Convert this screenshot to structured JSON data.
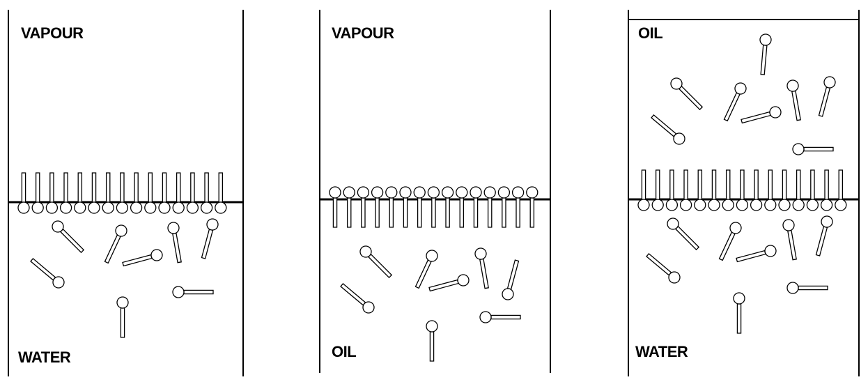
{
  "panels": [
    {
      "top_label": "VAPOUR",
      "bottom_label": "WATER",
      "interface": "water-vapour",
      "monolayer_orientation": "heads-down-tails-up",
      "molecules_in_bulk": 9
    },
    {
      "top_label": "VAPOUR",
      "bottom_label": "OIL",
      "interface": "oil-vapour",
      "monolayer_orientation": "heads-up-tails-down",
      "molecules_in_bulk": 9
    },
    {
      "top_label": "OIL",
      "bottom_label": "WATER",
      "interface": "water-oil",
      "monolayer_orientation": "heads-down-tails-up",
      "molecules_in_upper_phase": 8,
      "molecules_in_lower_phase": 9
    }
  ],
  "colors": {
    "stroke": "#000000",
    "fill": "#ffffff"
  }
}
